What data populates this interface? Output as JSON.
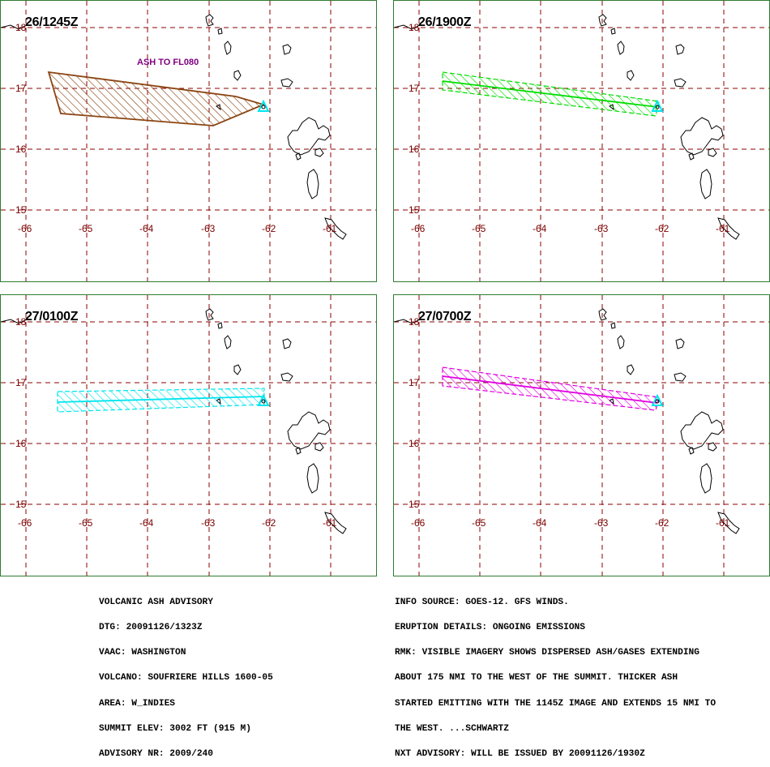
{
  "panels": [
    {
      "time": "26/1245Z",
      "color": "#8b4513",
      "ash_label": "ASH TO FL080"
    },
    {
      "time": "26/1900Z",
      "color": "#00dd00",
      "ash_label": ""
    },
    {
      "time": "27/0100Z",
      "color": "#00e5ee",
      "ash_label": ""
    },
    {
      "time": "27/0700Z",
      "color": "#e000e0",
      "ash_label": ""
    }
  ],
  "map": {
    "lon_labels": [
      "-66",
      "-65",
      "-64",
      "-63",
      "-62",
      "-61"
    ],
    "lat_labels": [
      "18",
      "17",
      "16",
      "15"
    ],
    "grid_color": "#8b0000",
    "coast_color": "#000000"
  },
  "advisory_left": [
    "VOLCANIC ASH ADVISORY",
    "DTG: 20091126/1323Z",
    "VAAC: WASHINGTON",
    "VOLCANO: SOUFRIERE HILLS 1600-05",
    "AREA: W_INDIES",
    "SUMMIT ELEV: 3002 FT (915 M)",
    "ADVISORY NR: 2009/240"
  ],
  "advisory_right": [
    "INFO SOURCE: GOES-12. GFS WINDS.",
    "ERUPTION DETAILS: ONGOING EMISSIONS",
    "RMK: VISIBLE IMAGERY SHOWS DISPERSED ASH/GASES EXTENDING",
    "ABOUT 175 NMI TO THE WEST OF THE SUMMIT. THICKER ASH",
    "STARTED EMITTING WITH THE 1145Z IMAGE AND EXTENDS 15 NMI TO",
    "THE WEST. ...SCHWARTZ",
    "NXT ADVISORY: WILL BE ISSUED BY 20091126/1930Z"
  ]
}
